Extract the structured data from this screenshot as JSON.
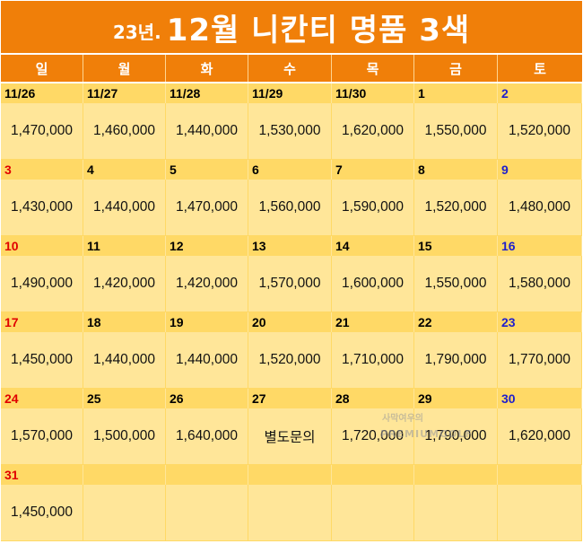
{
  "title": {
    "prefix": "23년.",
    "main": "12월 니칸티 명품 3색"
  },
  "weekdays": [
    "일",
    "월",
    "화",
    "수",
    "목",
    "금",
    "토"
  ],
  "weeks": [
    [
      {
        "date": "11/26",
        "price": "1,470,000"
      },
      {
        "date": "11/27",
        "price": "1,460,000"
      },
      {
        "date": "11/28",
        "price": "1,440,000"
      },
      {
        "date": "11/29",
        "price": "1,530,000"
      },
      {
        "date": "11/30",
        "price": "1,620,000"
      },
      {
        "date": "1",
        "price": "1,550,000"
      },
      {
        "date": "2",
        "price": "1,520,000"
      }
    ],
    [
      {
        "date": "3",
        "price": "1,430,000"
      },
      {
        "date": "4",
        "price": "1,440,000"
      },
      {
        "date": "5",
        "price": "1,470,000"
      },
      {
        "date": "6",
        "price": "1,560,000"
      },
      {
        "date": "7",
        "price": "1,590,000"
      },
      {
        "date": "8",
        "price": "1,520,000"
      },
      {
        "date": "9",
        "price": "1,480,000"
      }
    ],
    [
      {
        "date": "10",
        "price": "1,490,000"
      },
      {
        "date": "11",
        "price": "1,420,000"
      },
      {
        "date": "12",
        "price": "1,420,000"
      },
      {
        "date": "13",
        "price": "1,570,000"
      },
      {
        "date": "14",
        "price": "1,600,000"
      },
      {
        "date": "15",
        "price": "1,550,000"
      },
      {
        "date": "16",
        "price": "1,580,000"
      }
    ],
    [
      {
        "date": "17",
        "price": "1,450,000"
      },
      {
        "date": "18",
        "price": "1,440,000"
      },
      {
        "date": "19",
        "price": "1,440,000"
      },
      {
        "date": "20",
        "price": "1,520,000"
      },
      {
        "date": "21",
        "price": "1,710,000"
      },
      {
        "date": "22",
        "price": "1,790,000"
      },
      {
        "date": "23",
        "price": "1,770,000"
      }
    ],
    [
      {
        "date": "24",
        "price": "1,570,000"
      },
      {
        "date": "25",
        "price": "1,500,000"
      },
      {
        "date": "26",
        "price": "1,640,000"
      },
      {
        "date": "27",
        "price": "별도문의"
      },
      {
        "date": "28",
        "price": "1,720,000"
      },
      {
        "date": "29",
        "price": "1,790,000"
      },
      {
        "date": "30",
        "price": "1,620,000"
      }
    ],
    [
      {
        "date": "31",
        "price": "1,450,000"
      },
      {
        "date": "",
        "price": ""
      },
      {
        "date": "",
        "price": ""
      },
      {
        "date": "",
        "price": ""
      },
      {
        "date": "",
        "price": ""
      },
      {
        "date": "",
        "price": ""
      },
      {
        "date": "",
        "price": ""
      }
    ]
  ],
  "watermark": {
    "line1": "사막여우의",
    "line2": "PREMIUMGOLF"
  },
  "colors": {
    "header_orange": "#f07f09",
    "date_row": "#ffd966",
    "price_row": "#ffe699",
    "sunday": "#e00000",
    "saturday": "#1f1fcc"
  }
}
